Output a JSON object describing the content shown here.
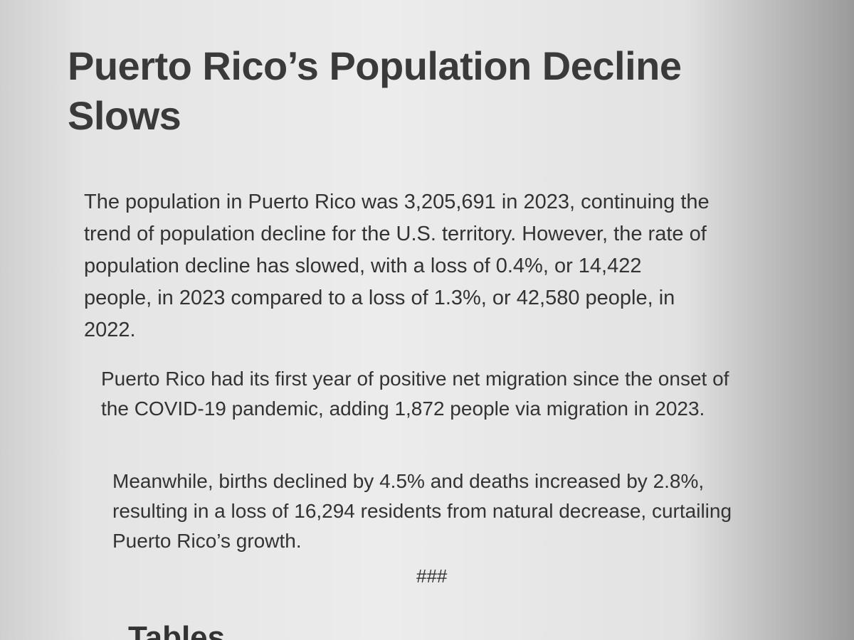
{
  "header": {
    "title": "Puerto Rico’s Population Decline Slows"
  },
  "paragraphs": [
    "The population in Puerto Rico was 3,205,691 in 2023, continuing the trend of population decline for the U.S. territory. However, the rate of population decline has slowed, with a loss of 0.4%, or 14,422 people, in 2023 compared to a loss of 1.3%, or 42,580 people, in 2022.",
    "Puerto Rico had its first year of positive net migration since the onset of the COVID-19 pandemic, adding 1,872 people via migration in 2023.",
    "Meanwhile, births declined by 4.5% and deaths increased by 2.8%, resulting in a loss of 16,294 residents from natural decrease, curtailing Puerto Rico’s growth."
  ],
  "separator": "###",
  "next_heading": "Tables"
}
